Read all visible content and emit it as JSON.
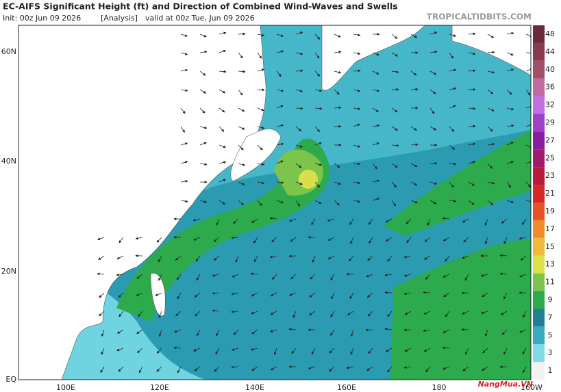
{
  "header": {
    "title": "EC-AIFS Significant Height (ft) and Direction of Combined Wind-Waves and Swells",
    "init": "Init: 00z Jun 09 2026",
    "analysis": "[Analysis]",
    "valid": "valid at 00z Tue, Jun 09 2026",
    "site": "TROPICALTIDBITS.COM"
  },
  "map": {
    "lat_labels": [
      "60N",
      "40N",
      "20N",
      "EQ"
    ],
    "lon_labels": [
      "100E",
      "120E",
      "140E",
      "160E",
      "180",
      "160W"
    ]
  },
  "colorbar": {
    "labels": [
      "1",
      "3",
      "5",
      "7",
      "9",
      "11",
      "13",
      "15",
      "17",
      "19",
      "21",
      "23",
      "25",
      "27",
      "29",
      "32",
      "36",
      "40",
      "44",
      "48"
    ]
  },
  "watermark": "NangMua.VN"
}
